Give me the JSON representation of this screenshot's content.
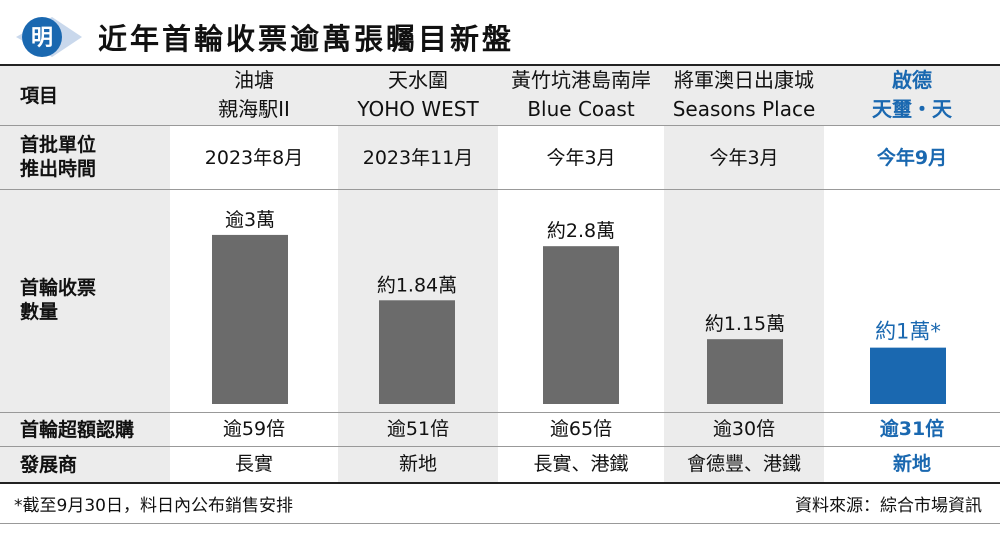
{
  "title": "近年首輪收票逾萬張矚目新盤",
  "logo_text": "明",
  "row_labels": {
    "project": "項目",
    "launch": [
      "首批單位",
      "推出時間"
    ],
    "tickets": [
      "首輪收票",
      "數量"
    ],
    "oversub": "首輪超額認購",
    "developer": "發展商"
  },
  "projects": [
    {
      "name_1": "油塘",
      "name_2": "親海駅II",
      "launch": "2023年8月",
      "oversub": "逾59倍",
      "developer": "長實",
      "highlight": false
    },
    {
      "name_1": "天水圍",
      "name_2": "YOHO WEST",
      "launch": "2023年11月",
      "oversub": "逾51倍",
      "developer": "新地",
      "highlight": false
    },
    {
      "name_1": "黃竹坑港島南岸",
      "name_2": "Blue Coast",
      "launch": "今年3月",
      "oversub": "逾65倍",
      "developer": "長實、港鐵",
      "highlight": false
    },
    {
      "name_1": "將軍澳日出康城",
      "name_2": "Seasons Place",
      "launch": "今年3月",
      "oversub": "逾30倍",
      "developer": "會德豐、港鐵",
      "highlight": false
    },
    {
      "name_1": "啟德",
      "name_2": "天璽・天",
      "launch": "今年9月",
      "oversub": "逾31倍",
      "developer": "新地",
      "highlight": true
    }
  ],
  "chart_data": {
    "type": "bar",
    "categories": [
      "油塘 親海駅II",
      "天水圍 YOHO WEST",
      "黃竹坑港島南岸 Blue Coast",
      "將軍澳日出康城 Seasons Place",
      "啟德 天璽・天"
    ],
    "values": [
      30000,
      18400,
      28000,
      11500,
      10000
    ],
    "data_labels": [
      "逾3萬",
      "約1.84萬",
      "約2.8萬",
      "約1.15萬",
      "約1萬*"
    ],
    "ylim": [
      0,
      33000
    ],
    "grid": false,
    "colors": {
      "default": "#6b6b6b",
      "highlight": "#1a68b0"
    }
  },
  "footnote": "*截至9月30日，料日內公布銷售安排",
  "source": "資料來源：綜合市場資訊",
  "colors": {
    "accent": "#1a68b0",
    "shade": "#ececec",
    "bar": "#6b6b6b"
  }
}
